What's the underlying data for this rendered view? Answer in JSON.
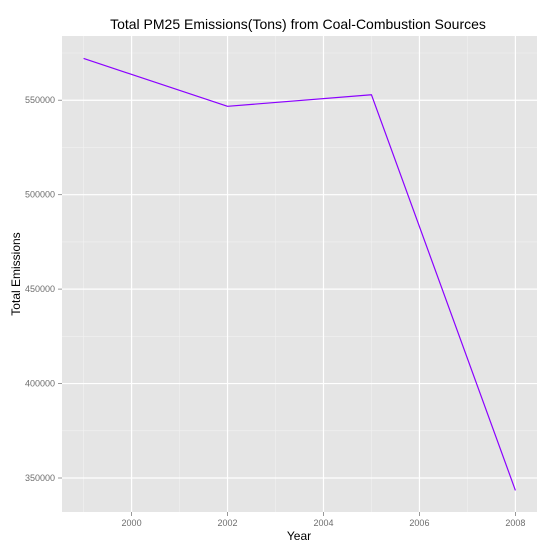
{
  "chart_data": {
    "type": "line",
    "title": "Total PM25 Emissions(Tons) from Coal-Combustion Sources",
    "xlabel": "Year",
    "ylabel": "Total Emissions",
    "x": [
      1999,
      2002,
      2005,
      2008
    ],
    "series": [
      {
        "values": [
          572126,
          546789,
          552881,
          343432
        ],
        "color": "#8B00FF"
      }
    ],
    "xlim": [
      1998.55,
      2008.45
    ],
    "ylim": [
      332000,
      584000
    ],
    "x_ticks": [
      2000,
      2002,
      2004,
      2006,
      2008
    ],
    "x_tick_labels": [
      "2000",
      "2002",
      "2004",
      "2006",
      "2008"
    ],
    "y_ticks": [
      350000,
      400000,
      450000,
      500000,
      550000
    ],
    "y_tick_labels": [
      "350000",
      "400000",
      "450000",
      "500000",
      "550000"
    ],
    "grid": true,
    "legend": "none",
    "panel_background": "#E5E5E5",
    "grid_color": "#FFFFFF"
  }
}
